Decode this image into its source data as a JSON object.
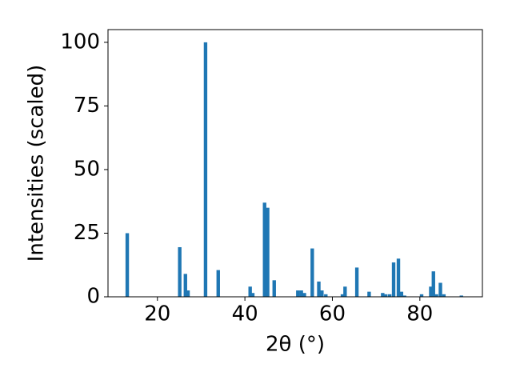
{
  "chart_data": {
    "type": "bar",
    "xlabel": "2θ (°)",
    "ylabel": "Intensities (scaled)",
    "color": "#1f77b4",
    "x": [
      13.1,
      25.1,
      26.4,
      27.0,
      31.0,
      33.9,
      41.2,
      41.8,
      44.5,
      45.2,
      46.7,
      52.1,
      52.9,
      53.6,
      55.4,
      56.9,
      57.6,
      58.5,
      62.3,
      62.9,
      65.6,
      68.4,
      71.5,
      72.2,
      73.1,
      74.0,
      75.1,
      75.8,
      76.5,
      80.4,
      82.5,
      83.1,
      83.8,
      84.7,
      85.5,
      89.5
    ],
    "values": [
      25,
      19.5,
      9,
      2.5,
      100,
      10.5,
      4,
      1.5,
      37,
      35,
      6.5,
      2.5,
      2.5,
      1.5,
      19,
      6,
      2.5,
      1,
      1,
      4,
      11.5,
      2,
      1.5,
      1,
      1,
      13.5,
      15,
      2,
      0.5,
      1,
      4,
      10,
      1,
      5.5,
      1,
      0.5
    ],
    "xlim": [
      8.7,
      94.3
    ],
    "xticks": [
      20,
      40,
      60,
      80
    ],
    "ylim": [
      0,
      105
    ],
    "yticks": [
      0,
      25,
      50,
      75,
      100
    ],
    "grid": false
  }
}
